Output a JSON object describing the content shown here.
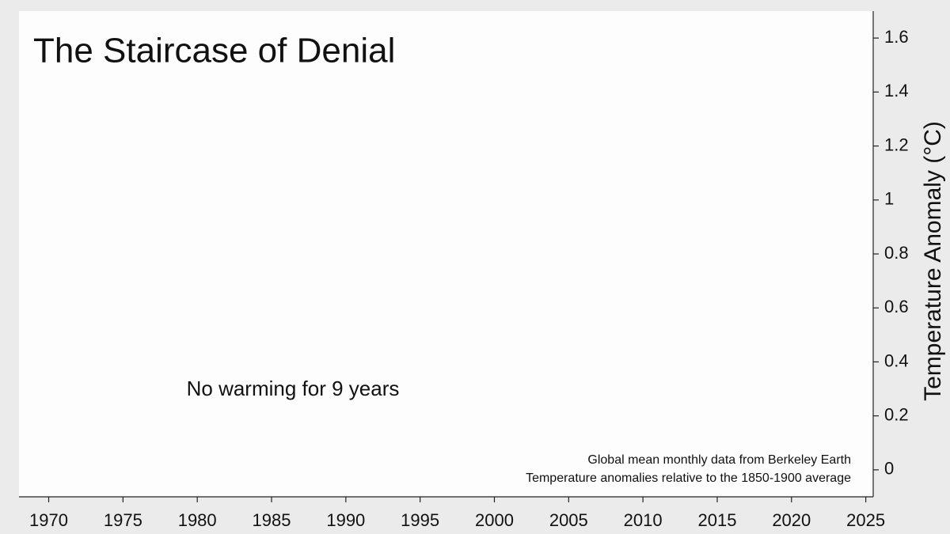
{
  "chart_data": {
    "type": "line",
    "title": "The Staircase of Denial",
    "annotation": "No warming for 9 years",
    "notes": [
      "Global mean monthly data from Berkeley Earth",
      "Temperature anomalies relative to the 1850-1900 average"
    ],
    "ylabel": "Temperature Anomaly (°C)",
    "xlim": [
      1968,
      2025.5
    ],
    "xticks": [
      1970,
      1975,
      1980,
      1985,
      1990,
      1995,
      2000,
      2005,
      2010,
      2015,
      2020,
      2025
    ],
    "ylim": [
      -0.1,
      1.7
    ],
    "yticks": [
      0,
      0.2,
      0.4,
      0.6,
      0.8,
      1,
      1.2,
      1.4,
      1.6
    ],
    "grid": false
  }
}
